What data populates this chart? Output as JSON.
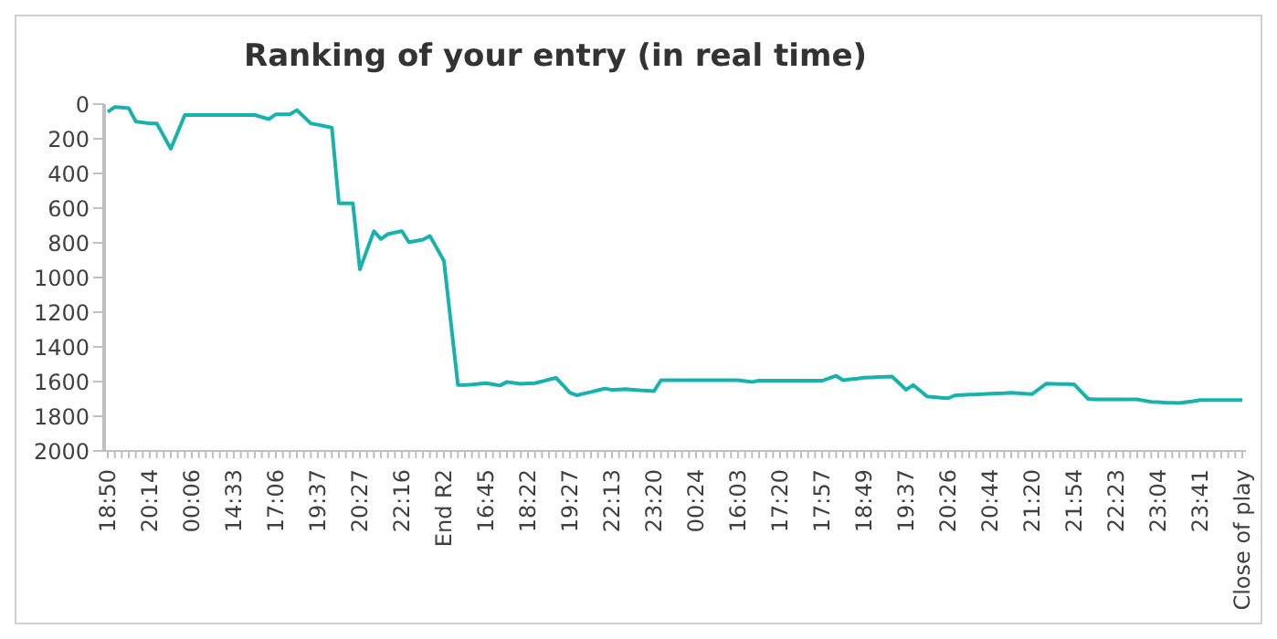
{
  "chart_data": {
    "type": "line",
    "title": "Ranking of your entry (in real time)",
    "categories": [
      "18:50",
      null,
      null,
      null,
      null,
      null,
      "20:14",
      null,
      null,
      null,
      null,
      null,
      "00:06",
      null,
      null,
      null,
      null,
      null,
      "14:33",
      null,
      null,
      null,
      null,
      null,
      "17:06",
      null,
      null,
      null,
      null,
      null,
      "19:37",
      null,
      null,
      null,
      null,
      null,
      "20:27",
      null,
      null,
      null,
      null,
      null,
      "22:16",
      null,
      null,
      null,
      null,
      null,
      "End R2",
      null,
      null,
      null,
      null,
      null,
      "16:45",
      null,
      null,
      null,
      null,
      null,
      "18:22",
      null,
      null,
      null,
      null,
      null,
      "19:27",
      null,
      null,
      null,
      null,
      null,
      "22:13",
      null,
      null,
      null,
      null,
      null,
      "23:20",
      null,
      null,
      null,
      null,
      null,
      "00:24",
      null,
      null,
      null,
      null,
      null,
      "16:03",
      null,
      null,
      null,
      null,
      null,
      "17:20",
      null,
      null,
      null,
      null,
      null,
      "17:57",
      null,
      null,
      null,
      null,
      null,
      "18:49",
      null,
      null,
      null,
      null,
      null,
      "19:37",
      null,
      null,
      null,
      null,
      null,
      "20:26",
      null,
      null,
      null,
      null,
      null,
      "20:44",
      null,
      null,
      null,
      null,
      null,
      "21:20",
      null,
      null,
      null,
      null,
      null,
      "21:54",
      null,
      null,
      null,
      null,
      null,
      "22:23",
      null,
      null,
      null,
      null,
      null,
      "23:04",
      null,
      null,
      null,
      null,
      null,
      "23:41",
      null,
      null,
      null,
      null,
      null,
      "Close of play"
    ],
    "series": [
      {
        "color": "#17b2ae",
        "values": [
          45,
          17,
          20,
          24,
          101,
          106,
          112,
          112,
          185,
          258,
          160,
          63,
          63,
          63,
          63,
          63,
          63,
          63,
          63,
          63,
          63,
          63,
          75,
          87,
          59,
          59,
          59,
          35,
          73,
          112,
          119,
          128,
          136,
          573,
          573,
          573,
          953,
          843,
          733,
          778,
          750,
          741,
          733,
          796,
          789,
          782,
          761,
          832,
          904,
          1262,
          1620,
          1620,
          1617,
          1613,
          1609,
          1616,
          1623,
          1602,
          1608,
          1613,
          1611,
          1609,
          1599,
          1588,
          1578,
          1621,
          1665,
          1679,
          1669,
          1660,
          1650,
          1640,
          1648,
          1646,
          1644,
          1647,
          1650,
          1652,
          1655,
          1592,
          1592,
          1592,
          1592,
          1592,
          1592,
          1592,
          1592,
          1592,
          1592,
          1592,
          1592,
          1597,
          1602,
          1595,
          1595,
          1595,
          1595,
          1595,
          1595,
          1595,
          1595,
          1595,
          1595,
          1581,
          1567,
          1592,
          1587,
          1583,
          1578,
          1576,
          1574,
          1573,
          1571,
          1609,
          1647,
          1620,
          1653,
          1686,
          1689,
          1693,
          1696,
          1679,
          1677,
          1675,
          1674,
          1672,
          1670,
          1668,
          1667,
          1665,
          1667,
          1670,
          1672,
          1642,
          1612,
          1613,
          1614,
          1615,
          1616,
          1658,
          1700,
          1702,
          1703,
          1703,
          1703,
          1703,
          1703,
          1703,
          1710,
          1717,
          1719,
          1721,
          1722,
          1724,
          1718,
          1713,
          1707,
          1707,
          1707,
          1707,
          1707,
          1707,
          1707
        ]
      }
    ],
    "ylim": [
      2000,
      0
    ],
    "yticks": [
      0,
      200,
      400,
      600,
      800,
      1000,
      1200,
      1400,
      1600,
      1800,
      2000
    ],
    "grid": false,
    "marker": "none",
    "line_style": "solid"
  }
}
